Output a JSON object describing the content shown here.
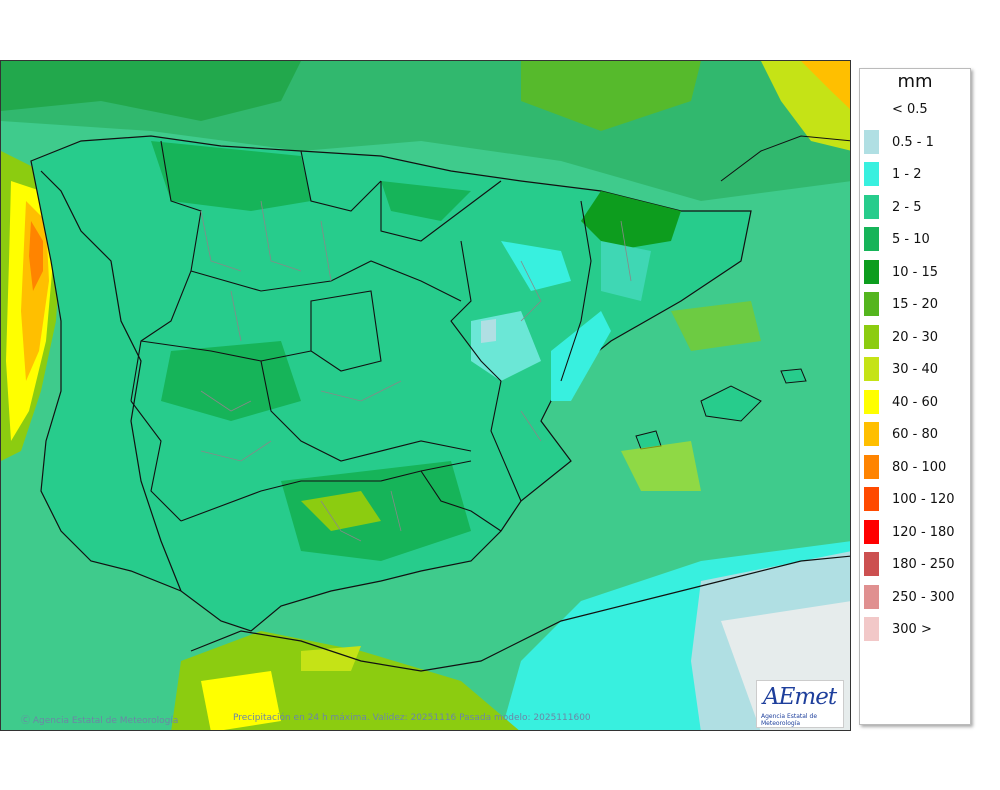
{
  "credit": {
    "left": "Agencia Estatal de Meteorología",
    "mid": "Precipitación en 24 h máxima. Validez: 20251116 Pasada modelo: 2025111600"
  },
  "logo": {
    "wordmark": "AEmet",
    "subtitle": "Agencia Estatal de Meteorología"
  },
  "legend": {
    "unit": "mm",
    "items": [
      {
        "label": "< 0.5",
        "color": "#ffffff"
      },
      {
        "label": "0.5 - 1",
        "color": "#b0dfe3"
      },
      {
        "label": "1 - 2",
        "color": "#38f0df"
      },
      {
        "label": "2 - 5",
        "color": "#27cc8c"
      },
      {
        "label": "5 - 10",
        "color": "#16b459"
      },
      {
        "label": "10 - 15",
        "color": "#0d9d1e"
      },
      {
        "label": "15 - 20",
        "color": "#54b51e"
      },
      {
        "label": "20 - 30",
        "color": "#8ccc10"
      },
      {
        "label": "30 - 40",
        "color": "#c5e316"
      },
      {
        "label": "40 - 60",
        "color": "#ffff00"
      },
      {
        "label": "60 - 80",
        "color": "#ffbf00"
      },
      {
        "label": "80 - 100",
        "color": "#ff8400"
      },
      {
        "label": "100 - 120",
        "color": "#ff4a00"
      },
      {
        "label": "120 - 180",
        "color": "#ff0000"
      },
      {
        "label": "180 - 250",
        "color": "#cc5050"
      },
      {
        "label": "250 - 300",
        "color": "#e09090"
      },
      {
        "label": "300 >",
        "color": "#f2c8c8"
      }
    ]
  }
}
